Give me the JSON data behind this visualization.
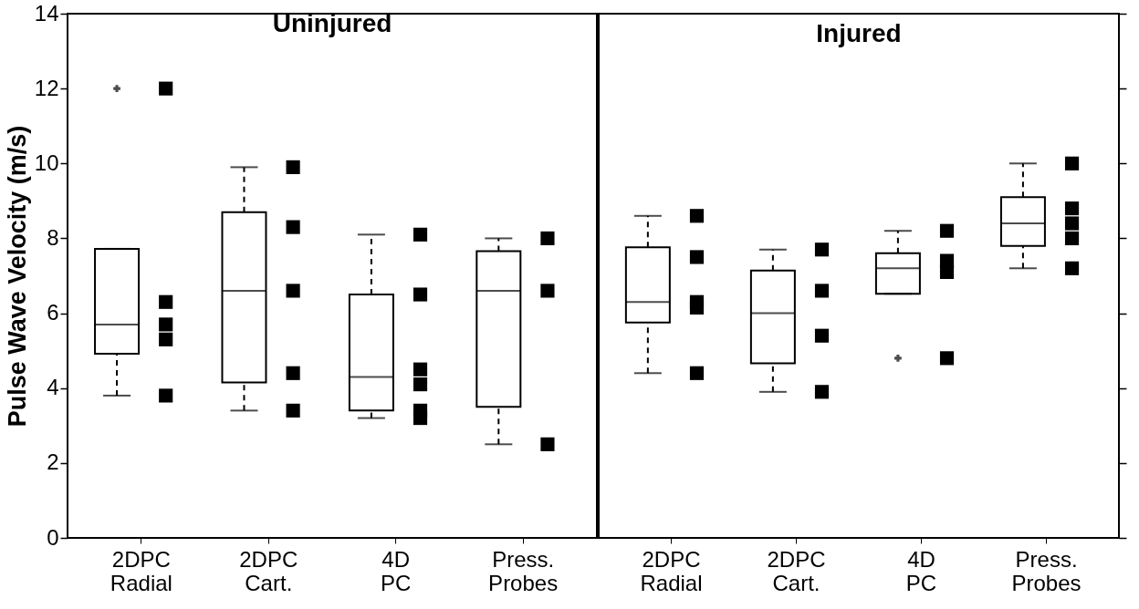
{
  "chart_data": [
    {
      "type": "box",
      "title": "Uninjured",
      "ylabel": "Pulse Wave Velocity (m/s)",
      "categories": [
        "2DPC Radial",
        "2DPC Cart.",
        "4D PC",
        "Press. Probes"
      ],
      "ylim": [
        0,
        14
      ],
      "yticks": [
        0,
        2,
        4,
        6,
        8,
        10,
        12,
        14
      ],
      "grid": false,
      "boxes": [
        {
          "low": 3.8,
          "q1": 4.92,
          "median": 5.7,
          "q3": 7.72,
          "high": 7.72,
          "outliers": [
            12
          ]
        },
        {
          "low": 3.4,
          "q1": 4.15,
          "median": 6.6,
          "q3": 8.7,
          "high": 9.9
        },
        {
          "low": 3.2,
          "q1": 3.4,
          "median": 4.3,
          "q3": 6.5,
          "high": 8.1
        },
        {
          "low": 2.5,
          "q1": 3.5,
          "median": 6.6,
          "q3": 7.66,
          "high": 8.0
        }
      ],
      "series": [
        {
          "type": "scatter",
          "color": "#000000",
          "marker": "square",
          "x": [
            "2DPC Radial",
            "2DPC Radial",
            "2DPC Radial",
            "2DPC Radial",
            "2DPC Radial",
            "2DPC Cart.",
            "2DPC Cart.",
            "2DPC Cart.",
            "2DPC Cart.",
            "2DPC Cart.",
            "4D PC",
            "4D PC",
            "4D PC",
            "4D PC",
            "4D PC",
            "4D PC",
            "Press. Probes",
            "Press. Probes",
            "Press. Probes"
          ],
          "values": [
            12,
            6.3,
            5.7,
            5.3,
            3.8,
            9.9,
            8.3,
            6.6,
            4.4,
            3.4,
            8.1,
            6.5,
            4.5,
            4.1,
            3.4,
            3.2,
            8.0,
            6.6,
            2.5
          ]
        }
      ]
    },
    {
      "type": "box",
      "title": "Injured",
      "categories": [
        "2DPC Radial",
        "2DPC Cart.",
        "4D PC",
        "Press. Probes"
      ],
      "ylim": [
        0,
        14
      ],
      "yticks": [
        0,
        2,
        4,
        6,
        8,
        10,
        12,
        14
      ],
      "tick_labels": "x",
      "grid": false,
      "boxes": [
        {
          "low": 4.4,
          "q1": 5.75,
          "median": 6.3,
          "q3": 7.76,
          "high": 8.6
        },
        {
          "low": 3.9,
          "q1": 4.66,
          "median": 6.0,
          "q3": 7.14,
          "high": 7.7
        },
        {
          "low": 6.52,
          "q1": 6.52,
          "median": 7.2,
          "q3": 7.6,
          "high": 8.2,
          "outliers": [
            4.8
          ]
        },
        {
          "low": 7.2,
          "q1": 7.8,
          "median": 8.4,
          "q3": 9.1,
          "high": 10.0
        }
      ],
      "series": [
        {
          "type": "scatter",
          "color": "#000000",
          "marker": "square",
          "x": [
            "2DPC Radial",
            "2DPC Radial",
            "2DPC Radial",
            "2DPC Radial",
            "2DPC Radial",
            "2DPC Cart.",
            "2DPC Cart.",
            "2DPC Cart.",
            "2DPC Cart.",
            "4D PC",
            "4D PC",
            "4D PC",
            "4D PC",
            "Press. Probes",
            "Press. Probes",
            "Press. Probes",
            "Press. Probes",
            "Press. Probes"
          ],
          "values": [
            8.6,
            7.5,
            6.3,
            6.15,
            4.4,
            7.7,
            6.6,
            5.4,
            3.9,
            8.2,
            7.4,
            7.1,
            4.8,
            10.0,
            8.8,
            8.4,
            8.0,
            7.2
          ]
        }
      ]
    }
  ]
}
